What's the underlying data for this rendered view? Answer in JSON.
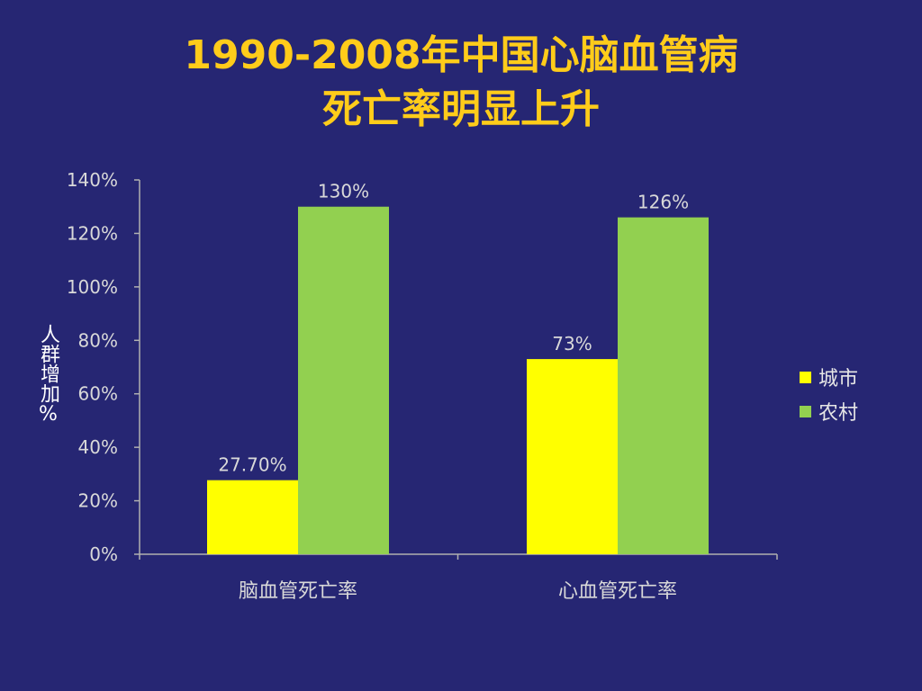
{
  "slide": {
    "title_line1": "1990-2008年中国心脑血管病",
    "title_line2": "死亡率明显上升",
    "background_color": "#262673",
    "title_color": "#FFCC1A"
  },
  "chart_data": {
    "type": "bar",
    "categories": [
      "脑血管死亡率",
      "心血管死亡率"
    ],
    "series": [
      {
        "name": "城市",
        "values": [
          27.7,
          73
        ],
        "labels": [
          "27.70%",
          "73%"
        ],
        "color": "#FFFF00"
      },
      {
        "name": "农村",
        "values": [
          130,
          126
        ],
        "labels": [
          "130%",
          "126%"
        ],
        "color": "#92D050"
      }
    ],
    "ylabel": "人群增加%",
    "ylim": [
      0,
      140
    ],
    "yticks": [
      "0%",
      "20%",
      "40%",
      "60%",
      "80%",
      "100%",
      "120%",
      "140%"
    ],
    "grid": false,
    "legend_position": "right"
  }
}
